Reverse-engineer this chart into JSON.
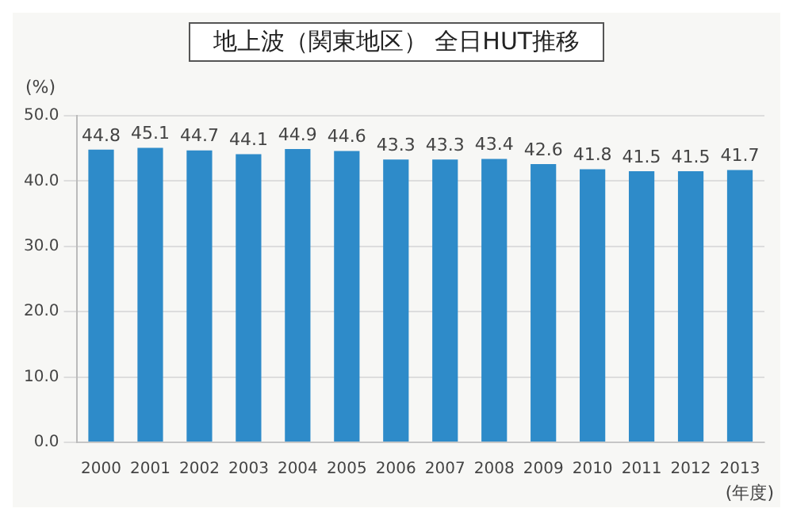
{
  "chart_data": {
    "type": "bar",
    "title": "地上波（関東地区） 全日HUT推移",
    "ylabel": "(%)",
    "xlabel": "(年度)",
    "categories": [
      "2000",
      "2001",
      "2002",
      "2003",
      "2004",
      "2005",
      "2006",
      "2007",
      "2008",
      "2009",
      "2010",
      "2011",
      "2012",
      "2013"
    ],
    "values": [
      44.8,
      45.1,
      44.7,
      44.1,
      44.9,
      44.6,
      43.3,
      43.3,
      43.4,
      42.6,
      41.8,
      41.5,
      41.5,
      41.7
    ],
    "color": "#2e8bc9",
    "ylim": [
      0,
      50
    ],
    "yticks": [
      {
        "value": 0,
        "label": "0.0"
      },
      {
        "value": 10,
        "label": "10.0"
      },
      {
        "value": 20,
        "label": "20.0"
      },
      {
        "value": 30,
        "label": "30.0"
      },
      {
        "value": 40,
        "label": "40.0"
      },
      {
        "value": 50,
        "label": "50.0"
      }
    ],
    "grid": "y",
    "data_labels": true,
    "legend": false
  }
}
